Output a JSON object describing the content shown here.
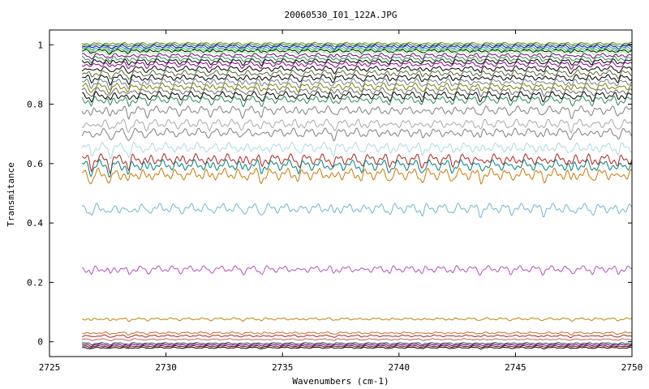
{
  "chart_data": {
    "type": "line",
    "title": "20060530_I01_122A.JPG",
    "xlabel": "Wavenumbers (cm-1)",
    "ylabel": "Transmitance",
    "xlim": [
      2725,
      2750
    ],
    "ylim": [
      -0.05,
      1.05
    ],
    "x_ticks": [
      2725,
      2730,
      2735,
      2740,
      2745,
      2750
    ],
    "y_ticks": [
      0,
      0.2,
      0.4,
      0.6,
      0.8,
      1
    ],
    "x_range_plotted": [
      2726.4,
      2750
    ],
    "grid": false,
    "legend": "none",
    "series": [
      {
        "color": "#6b8e23",
        "baseline": 1.005,
        "amplitude": 0.004
      },
      {
        "color": "#228b22",
        "baseline": 1.0,
        "amplitude": 0.005
      },
      {
        "color": "#0000cd",
        "baseline": 0.995,
        "amplitude": 0.006
      },
      {
        "color": "#4682b4",
        "baseline": 0.99,
        "amplitude": 0.006
      },
      {
        "color": "#32cd32",
        "baseline": 0.985,
        "amplitude": 0.006
      },
      {
        "color": "#000000",
        "baseline": 0.98,
        "amplitude": 0.006
      },
      {
        "color": "#90ee90",
        "baseline": 0.975,
        "amplitude": 0.007
      },
      {
        "color": "#800080",
        "baseline": 0.965,
        "amplitude": 0.008
      },
      {
        "color": "#2e8b57",
        "baseline": 0.955,
        "amplitude": 0.009
      },
      {
        "color": "#000000",
        "baseline": 0.945,
        "amplitude": 0.009
      },
      {
        "color": "#8b008b",
        "baseline": 0.935,
        "amplitude": 0.01
      },
      {
        "color": "#000000",
        "baseline": 0.92,
        "amplitude": 0.011
      },
      {
        "color": "#556b2f",
        "baseline": 0.905,
        "amplitude": 0.012
      },
      {
        "color": "#000000",
        "baseline": 0.89,
        "amplitude": 0.012
      },
      {
        "color": "#708090",
        "baseline": 0.875,
        "amplitude": 0.013
      },
      {
        "color": "#808000",
        "baseline": 0.86,
        "amplitude": 0.014
      },
      {
        "color": "#696969",
        "baseline": 0.845,
        "amplitude": 0.014
      },
      {
        "color": "#000000",
        "baseline": 0.83,
        "amplitude": 0.015
      },
      {
        "color": "#2e8b57",
        "baseline": 0.815,
        "amplitude": 0.015
      },
      {
        "color": "#808080",
        "baseline": 0.78,
        "amplitude": 0.017
      },
      {
        "color": "#a9a9a9",
        "baseline": 0.735,
        "amplitude": 0.018
      },
      {
        "color": "#808080",
        "baseline": 0.705,
        "amplitude": 0.018
      },
      {
        "color": "#add8e6",
        "baseline": 0.655,
        "amplitude": 0.02
      },
      {
        "color": "#b22222",
        "baseline": 0.615,
        "amplitude": 0.022
      },
      {
        "color": "#008080",
        "baseline": 0.595,
        "amplitude": 0.022
      },
      {
        "color": "#cc7a00",
        "baseline": 0.565,
        "amplitude": 0.024
      },
      {
        "color": "#6fb7cf",
        "baseline": 0.45,
        "amplitude": 0.02
      },
      {
        "color": "#b94fc4",
        "baseline": 0.245,
        "amplitude": 0.014
      },
      {
        "color": "#b8860b",
        "baseline": 0.077,
        "amplitude": 0.005
      },
      {
        "color": "#d2691e",
        "baseline": 0.03,
        "amplitude": 0.004
      },
      {
        "color": "#a52a2a",
        "baseline": 0.02,
        "amplitude": 0.004
      },
      {
        "color": "#cd5c5c",
        "baseline": 0.008,
        "amplitude": 0.003
      },
      {
        "color": "#2f4f4f",
        "baseline": -0.005,
        "amplitude": 0.003
      },
      {
        "color": "#4b0082",
        "baseline": -0.01,
        "amplitude": 0.003
      },
      {
        "color": "#8b0000",
        "baseline": -0.015,
        "amplitude": 0.003
      },
      {
        "color": "#000000",
        "baseline": -0.02,
        "amplitude": 0.003
      }
    ]
  }
}
